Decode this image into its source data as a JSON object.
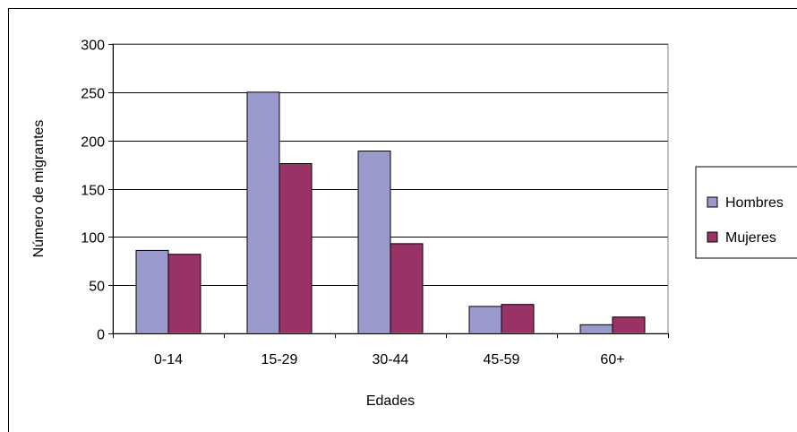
{
  "chart_data": {
    "type": "bar",
    "title": "",
    "xlabel": "Edades",
    "ylabel": "Número de migrantes",
    "categories": [
      "0-14",
      "15-29",
      "30-44",
      "45-59",
      "60+"
    ],
    "series": [
      {
        "name": "Hombres",
        "values": [
          86,
          250,
          189,
          28,
          9
        ],
        "color": "#9999cc"
      },
      {
        "name": "Mujeres",
        "values": [
          82,
          176,
          93,
          30,
          17
        ],
        "color": "#993366"
      }
    ],
    "ylim": [
      0,
      300
    ],
    "yticks": [
      0,
      50,
      100,
      150,
      200,
      250,
      300
    ],
    "grid": true,
    "legend_position": "right"
  }
}
